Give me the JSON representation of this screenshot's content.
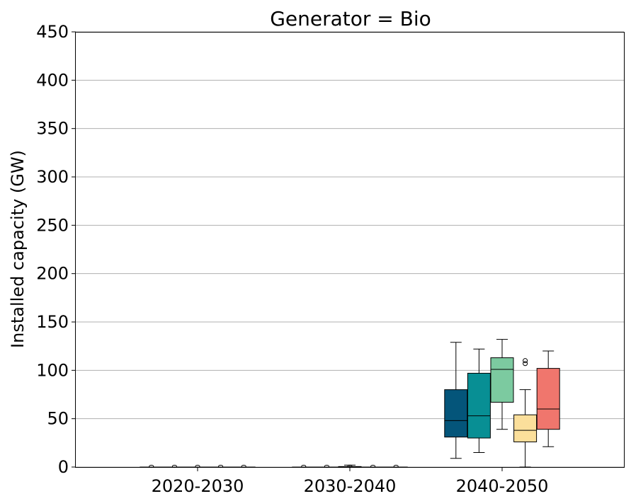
{
  "chart_data": {
    "type": "box",
    "title": "Generator = Bio",
    "ylabel": "Installed capacity (GW)",
    "xlabel": "",
    "ylim": [
      0,
      450
    ],
    "yticks": [
      0,
      50,
      100,
      150,
      200,
      250,
      300,
      350,
      400,
      450
    ],
    "ytick_labels": [
      "0",
      "50",
      "100",
      "150",
      "200",
      "250",
      "300",
      "350",
      "400",
      "450"
    ],
    "categories": [
      "2020-2030",
      "2030-2040",
      "2040-2050"
    ],
    "grid": "horizontal",
    "series": [
      {
        "color": "#04557a",
        "boxes": [
          {
            "whislo": 0,
            "q1": 0,
            "med": 0,
            "q3": 0,
            "whishi": 0,
            "fliers": []
          },
          {
            "whislo": 0,
            "q1": 0,
            "med": 0,
            "q3": 0,
            "whishi": 0,
            "fliers": []
          },
          {
            "whislo": 9,
            "q1": 31,
            "med": 48,
            "q3": 80,
            "whishi": 129,
            "fliers": []
          }
        ]
      },
      {
        "color": "#088f94",
        "boxes": [
          {
            "whislo": 0,
            "q1": 0,
            "med": 0,
            "q3": 0,
            "whishi": 0,
            "fliers": []
          },
          {
            "whislo": 0,
            "q1": 0,
            "med": 0,
            "q3": 0,
            "whishi": 0,
            "fliers": []
          },
          {
            "whislo": 15,
            "q1": 30,
            "med": 53,
            "q3": 97,
            "whishi": 122,
            "fliers": []
          }
        ]
      },
      {
        "color": "#7ccaa0",
        "boxes": [
          {
            "whislo": 0,
            "q1": 0,
            "med": 0,
            "q3": 0,
            "whishi": 0,
            "fliers": []
          },
          {
            "whislo": 0,
            "q1": 0,
            "med": 0,
            "q3": 0.5,
            "whishi": 2,
            "fliers": []
          },
          {
            "whislo": 39,
            "q1": 67,
            "med": 101,
            "q3": 113,
            "whishi": 132,
            "fliers": []
          }
        ]
      },
      {
        "color": "#fbdf9b",
        "boxes": [
          {
            "whislo": 0,
            "q1": 0,
            "med": 0,
            "q3": 0,
            "whishi": 0,
            "fliers": []
          },
          {
            "whislo": 0,
            "q1": 0,
            "med": 0,
            "q3": 0,
            "whishi": 0,
            "fliers": []
          },
          {
            "whislo": 0,
            "q1": 26,
            "med": 38,
            "q3": 54,
            "whishi": 80,
            "fliers": [
              107,
              110
            ]
          }
        ]
      },
      {
        "color": "#f0766d",
        "boxes": [
          {
            "whislo": 0,
            "q1": 0,
            "med": 0,
            "q3": 0,
            "whishi": 0,
            "fliers": []
          },
          {
            "whislo": 0,
            "q1": 0,
            "med": 0,
            "q3": 0,
            "whishi": 0,
            "fliers": []
          },
          {
            "whislo": 21,
            "q1": 39,
            "med": 60,
            "q3": 102,
            "whishi": 120,
            "fliers": []
          }
        ]
      }
    ]
  }
}
